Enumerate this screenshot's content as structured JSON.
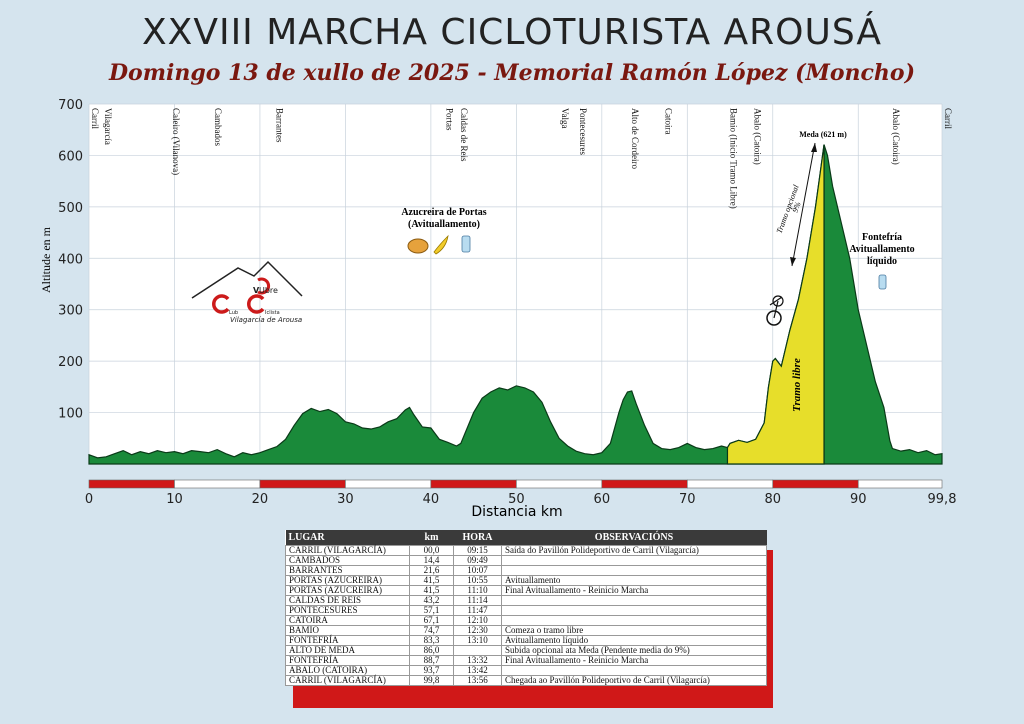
{
  "title": "XXVIII MARCHA CICLOTURISTA AROUSÁ",
  "subtitle": "Domingo 13 de xullo de 2025 - Memorial Ramón López (Moncho)",
  "chart_data": {
    "type": "area",
    "ylabel": "Altitude en m",
    "xlabel": "Distancia  km",
    "xlim": [
      0,
      99.8
    ],
    "ylim": [
      0,
      700
    ],
    "yticks": [
      "100",
      "200",
      "300",
      "400",
      "500",
      "600",
      "700"
    ],
    "xticks": [
      "0",
      "10",
      "20",
      "30",
      "40",
      "50",
      "60",
      "70",
      "80",
      "90",
      "99,8"
    ],
    "profile": [
      [
        0,
        18
      ],
      [
        1,
        12
      ],
      [
        2,
        14
      ],
      [
        3,
        20
      ],
      [
        4,
        26
      ],
      [
        5,
        18
      ],
      [
        6,
        24
      ],
      [
        7,
        20
      ],
      [
        8,
        26
      ],
      [
        9,
        22
      ],
      [
        10,
        24
      ],
      [
        11,
        20
      ],
      [
        12,
        26
      ],
      [
        13,
        24
      ],
      [
        14,
        22
      ],
      [
        15,
        28
      ],
      [
        16,
        20
      ],
      [
        17,
        14
      ],
      [
        18,
        22
      ],
      [
        19,
        18
      ],
      [
        20,
        22
      ],
      [
        21,
        28
      ],
      [
        22,
        34
      ],
      [
        23,
        48
      ],
      [
        24,
        75
      ],
      [
        25,
        98
      ],
      [
        26,
        108
      ],
      [
        27,
        102
      ],
      [
        28,
        106
      ],
      [
        29,
        98
      ],
      [
        30,
        82
      ],
      [
        31,
        78
      ],
      [
        32,
        70
      ],
      [
        33,
        68
      ],
      [
        34,
        72
      ],
      [
        35,
        82
      ],
      [
        36,
        88
      ],
      [
        37,
        105
      ],
      [
        37.5,
        110
      ],
      [
        38,
        96
      ],
      [
        39,
        72
      ],
      [
        40,
        70
      ],
      [
        41,
        48
      ],
      [
        42,
        42
      ],
      [
        43,
        35
      ],
      [
        43.5,
        40
      ],
      [
        44,
        60
      ],
      [
        45,
        100
      ],
      [
        46,
        128
      ],
      [
        47,
        140
      ],
      [
        48,
        148
      ],
      [
        49,
        144
      ],
      [
        50,
        152
      ],
      [
        51,
        148
      ],
      [
        52,
        140
      ],
      [
        53,
        120
      ],
      [
        54,
        82
      ],
      [
        55,
        50
      ],
      [
        56,
        35
      ],
      [
        57,
        25
      ],
      [
        58,
        20
      ],
      [
        59,
        18
      ],
      [
        60,
        22
      ],
      [
        61,
        40
      ],
      [
        62,
        100
      ],
      [
        62.5,
        125
      ],
      [
        63,
        140
      ],
      [
        63.5,
        142
      ],
      [
        64,
        118
      ],
      [
        65,
        75
      ],
      [
        66,
        40
      ],
      [
        67,
        30
      ],
      [
        68,
        28
      ],
      [
        69,
        32
      ],
      [
        70,
        40
      ],
      [
        71,
        32
      ],
      [
        72,
        28
      ],
      [
        73,
        30
      ],
      [
        74,
        35
      ],
      [
        74.7,
        32
      ],
      [
        75,
        40
      ],
      [
        76,
        46
      ],
      [
        77,
        42
      ],
      [
        78,
        48
      ],
      [
        79,
        80
      ],
      [
        79.5,
        150
      ],
      [
        80,
        200
      ],
      [
        80.3,
        205
      ],
      [
        81,
        190
      ],
      [
        82,
        260
      ],
      [
        83,
        320
      ],
      [
        84,
        400
      ],
      [
        85,
        500
      ],
      [
        85.5,
        560
      ],
      [
        86,
        621
      ],
      [
        86.4,
        600
      ],
      [
        87,
        540
      ],
      [
        88,
        470
      ],
      [
        89,
        400
      ],
      [
        90,
        300
      ],
      [
        91,
        230
      ],
      [
        92,
        160
      ],
      [
        93,
        110
      ],
      [
        93.7,
        45
      ],
      [
        94,
        30
      ],
      [
        95,
        25
      ],
      [
        96,
        28
      ],
      [
        97,
        22
      ],
      [
        98,
        26
      ],
      [
        99,
        18
      ],
      [
        99.8,
        20
      ]
    ],
    "segments": [
      {
        "name": "Tramo libre",
        "from": 74.7,
        "to": 86,
        "color": "#e7de2a"
      },
      {
        "name": "profile",
        "from": 0,
        "to": 99.8,
        "color": "#1a8a3a"
      }
    ],
    "places": [
      {
        "km": 0,
        "label": "Carril"
      },
      {
        "km": 1.5,
        "label": "Vilagarcía"
      },
      {
        "km": 9.5,
        "label": "Caleiro (Vilanova)"
      },
      {
        "km": 14.4,
        "label": "Cambados"
      },
      {
        "km": 21.6,
        "label": "Barrantes"
      },
      {
        "km": 41.5,
        "label": "Portas"
      },
      {
        "km": 43.2,
        "label": "Caldas de Reis"
      },
      {
        "km": 55,
        "label": "Valga"
      },
      {
        "km": 57.1,
        "label": "Pontecesures"
      },
      {
        "km": 63.2,
        "label": "Alto de Cordeiro"
      },
      {
        "km": 67.1,
        "label": "Catoira"
      },
      {
        "km": 74.7,
        "label": "Bamio (Inicio Tramo Libre)"
      },
      {
        "km": 77.5,
        "label": "Abalo (Catoira)"
      },
      {
        "km": 93.7,
        "label": "Abalo (Catoira)"
      },
      {
        "km": 99.8,
        "label": "Carril"
      }
    ],
    "annotations": {
      "meda": "Meda (621 m)",
      "azucreira": "Azucreira de Portas",
      "azucreira2": "(Avituallamento)",
      "fontefria1": "Fontefría",
      "fontefria2": "Avituallamento",
      "fontefria3": "líquido",
      "tramo_opcional": "Tramo opcional",
      "tramo_pct": "9%",
      "tramo_libre": "Tramo libre",
      "club1": "Ubre",
      "club_v": "V",
      "club_lub": "Lub",
      "club_iclista": "Iclista",
      "club3": "Vilagarcía de Arousa"
    },
    "grid": true,
    "colors": {
      "profile": "#1a8a3a",
      "free": "#e7de2a",
      "scale_red": "#d01818"
    }
  },
  "table": {
    "headers": [
      "LUGAR",
      "km",
      "HORA",
      "OBSERVACIÓNS"
    ],
    "rows": [
      [
        "CARRIL (VILAGARCÍA)",
        "00,0",
        "09:15",
        "Saída do Pavillón Polideportivo de Carril (Vilagarcía)"
      ],
      [
        "CAMBADOS",
        "14,4",
        "09:49",
        ""
      ],
      [
        "BARRANTES",
        "21,6",
        "10:07",
        ""
      ],
      [
        "PORTAS (AZUCREIRA)",
        "41,5",
        "10:55",
        "Avituallamento"
      ],
      [
        "PORTAS (AZUCREIRA)",
        "41,5",
        "11:10",
        "Final Avituallamento - Reinicio Marcha"
      ],
      [
        "CALDAS DE REIS",
        "43,2",
        "11:14",
        ""
      ],
      [
        "PONTECESURES",
        "57,1",
        "11:47",
        ""
      ],
      [
        "CATOIRA",
        "67,1",
        "12:10",
        ""
      ],
      [
        "BAMIO",
        "74,7",
        "12:30",
        "Comeza o tramo libre"
      ],
      [
        "FONTEFRÍA",
        "83,3",
        "13:10",
        "Avituallamento líquido"
      ],
      [
        "ALTO DE MEDA",
        "86,0",
        "",
        "Subida opcional ata Meda (Pendente media do 9%)"
      ],
      [
        "FONTEFRÍA",
        "88,7",
        "13:32",
        "Final Avituallamento - Reinicio Marcha"
      ],
      [
        "ABALO (CATOIRA)",
        "93,7",
        "13:42",
        ""
      ],
      [
        "CARRIL (VILAGARCÍA)",
        "99,8",
        "13:56",
        "Chegada ao Pavillón Polideportivo de Carril (Vilagarcía)"
      ]
    ]
  }
}
